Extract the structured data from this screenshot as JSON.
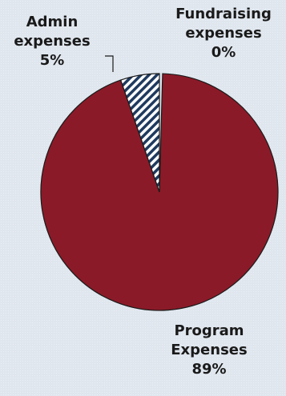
{
  "chart_data": {
    "type": "pie",
    "series": [
      {
        "name": "",
        "slices": [
          {
            "label": "Fundraising expenses",
            "label_lines": [
              "Fundraising",
              "expenses"
            ],
            "percent_label": "0%",
            "value": 0.4,
            "color": "#888888",
            "pattern": "none"
          },
          {
            "label": "Program Expenses",
            "label_lines": [
              "Program",
              "Expenses"
            ],
            "percent_label": "89%",
            "value": 89,
            "color": "#8b1a28",
            "pattern": "solid"
          },
          {
            "label": "Admin expenses",
            "label_lines": [
              "Admin",
              "expenses"
            ],
            "percent_label": "5%",
            "value": 5,
            "color": "#1f3a5f",
            "pattern": "diagonal-stripes"
          }
        ]
      }
    ],
    "legend": "none",
    "start_angle": "12 o'clock",
    "direction": "clockwise",
    "leader_line": "Admin expenses"
  },
  "labels": {
    "admin": {
      "line1": "Admin",
      "line2": "expenses",
      "percent": "5%"
    },
    "fundraising": {
      "line1": "Fundraising",
      "line2": "expenses",
      "percent": "0%"
    },
    "program": {
      "line1": "Program",
      "line2": "Expenses",
      "percent": "89%"
    }
  },
  "colors": {
    "background": "#dfe6ee",
    "program": "#8b1a28",
    "admin_stripe": "#1f3a5f",
    "admin_base": "#ffffff"
  }
}
